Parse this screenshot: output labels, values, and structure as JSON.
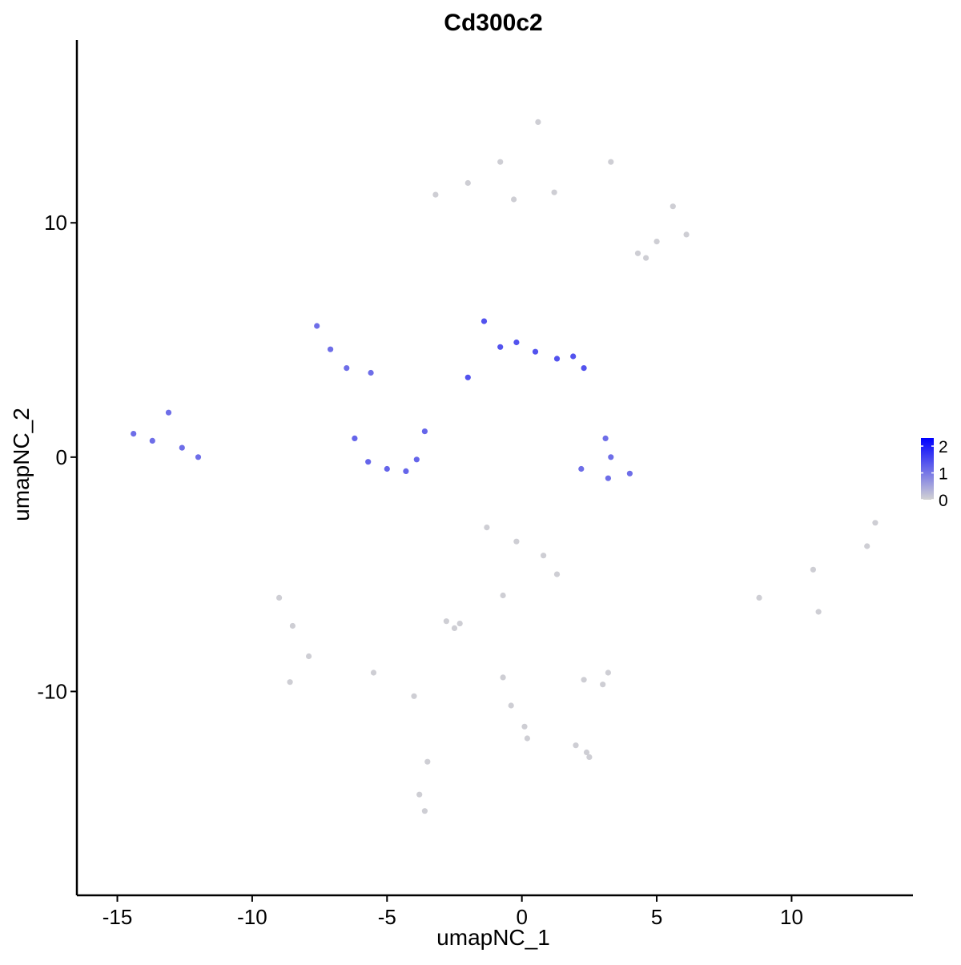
{
  "chart_data": {
    "type": "scatter",
    "title": "Cd300c2",
    "xlabel": "umapNC_1",
    "ylabel": "umapNC_2",
    "xlim": [
      -16.5,
      14.5
    ],
    "ylim": [
      -18.7,
      17.8
    ],
    "x_ticks": [
      -15,
      -10,
      -5,
      0,
      5,
      10
    ],
    "x_tick_labels": [
      "-15",
      "-10",
      "-5",
      "0",
      "5",
      "10"
    ],
    "y_ticks": [
      -10,
      0,
      10
    ],
    "y_tick_labels": [
      "-10",
      "0",
      "10"
    ],
    "grid": false,
    "legend_position": "right",
    "color_scale": {
      "low": "#d3d3d3",
      "high": "#0000ff",
      "min": 0,
      "max": 2.3,
      "breaks": [
        0,
        1,
        2
      ],
      "break_labels": [
        "0",
        "1",
        "2"
      ]
    },
    "clusters": [
      {
        "x": [
          10.8,
          13.1,
          8.8,
          11.0,
          12.8
        ],
        "y": [
          -4.8,
          -2.8,
          -6.0,
          -6.6,
          -3.8
        ],
        "expression": 0.05,
        "note": "right large cluster"
      },
      {
        "x": [
          0.6,
          -0.8,
          3.3,
          5.6,
          6.1
        ],
        "y": [
          14.3,
          12.6,
          12.6,
          10.7,
          9.5
        ],
        "expression": 0.05,
        "note": "top cluster"
      },
      {
        "x": [
          -3.2,
          -2.0,
          -0.3,
          1.2
        ],
        "y": [
          11.2,
          11.7,
          11.0,
          11.3
        ],
        "expression": 0.05,
        "note": "top-left arm"
      },
      {
        "x": [
          4.3,
          5.0,
          4.6
        ],
        "y": [
          8.7,
          9.2,
          8.5
        ],
        "expression": 0.05,
        "note": "top small lobe"
      },
      {
        "x": [
          -9.0,
          -8.5,
          -7.9,
          -8.6,
          -5.5,
          -4.0,
          -3.5,
          -3.8,
          -3.6
        ],
        "y": [
          -6.0,
          -7.2,
          -8.5,
          -9.6,
          -9.2,
          -10.2,
          -13.0,
          -14.4,
          -15.1
        ],
        "expression": 0.05,
        "note": "bottom-left cluster and tail"
      },
      {
        "x": [
          -1.3,
          -0.2,
          0.8,
          1.3,
          -0.7
        ],
        "y": [
          -3.0,
          -3.6,
          -4.2,
          -5.0,
          -5.9
        ],
        "expression": 0.05,
        "note": "middle-bottom cluster"
      },
      {
        "x": [
          -2.8,
          -2.5,
          -2.3
        ],
        "y": [
          -7.0,
          -7.3,
          -7.1
        ],
        "expression": 0.05,
        "note": "small cluster"
      },
      {
        "x": [
          2.3,
          3.0,
          3.2
        ],
        "y": [
          -9.5,
          -9.7,
          -9.2
        ],
        "expression": 0.05,
        "note": "small cluster"
      },
      {
        "x": [
          -0.7,
          -0.4,
          0.1,
          0.2
        ],
        "y": [
          -9.4,
          -10.6,
          -11.5,
          -12.0
        ],
        "expression": 0.05,
        "note": "vertical strand"
      },
      {
        "x": [
          2.0,
          2.4,
          2.5
        ],
        "y": [
          -12.3,
          -12.6,
          -12.8
        ],
        "expression": 0.05,
        "note": "small cluster"
      },
      {
        "x": [
          -14.4,
          -13.7,
          -13.1,
          -12.6,
          -12.0
        ],
        "y": [
          1.0,
          0.7,
          1.9,
          0.4,
          0.0
        ],
        "expression": 1.1,
        "note": "left expressing cluster"
      },
      {
        "x": [
          -7.6,
          -7.1,
          -6.5,
          -5.6
        ],
        "y": [
          5.6,
          4.6,
          3.8,
          3.6
        ],
        "expression": 1.1,
        "note": "upper-left arm"
      },
      {
        "x": [
          -6.2,
          -5.7,
          -5.0,
          -4.3,
          -3.9,
          -3.6
        ],
        "y": [
          0.8,
          -0.2,
          -0.5,
          -0.6,
          -0.1,
          1.1
        ],
        "expression": 1.2,
        "note": "bottom cup cluster"
      },
      {
        "x": [
          -1.4,
          -0.8,
          -0.2,
          0.5,
          1.3,
          1.9,
          2.3,
          -2.0
        ],
        "y": [
          5.8,
          4.7,
          4.9,
          4.5,
          4.2,
          4.3,
          3.8,
          3.4
        ],
        "expression": 1.4,
        "note": "central expressing cluster"
      },
      {
        "x": [
          3.1,
          3.3,
          2.2,
          3.2,
          4.0
        ],
        "y": [
          0.8,
          0.0,
          -0.5,
          -0.9,
          -0.7
        ],
        "expression": 1.1,
        "note": "right-central expressing cluster"
      }
    ]
  }
}
